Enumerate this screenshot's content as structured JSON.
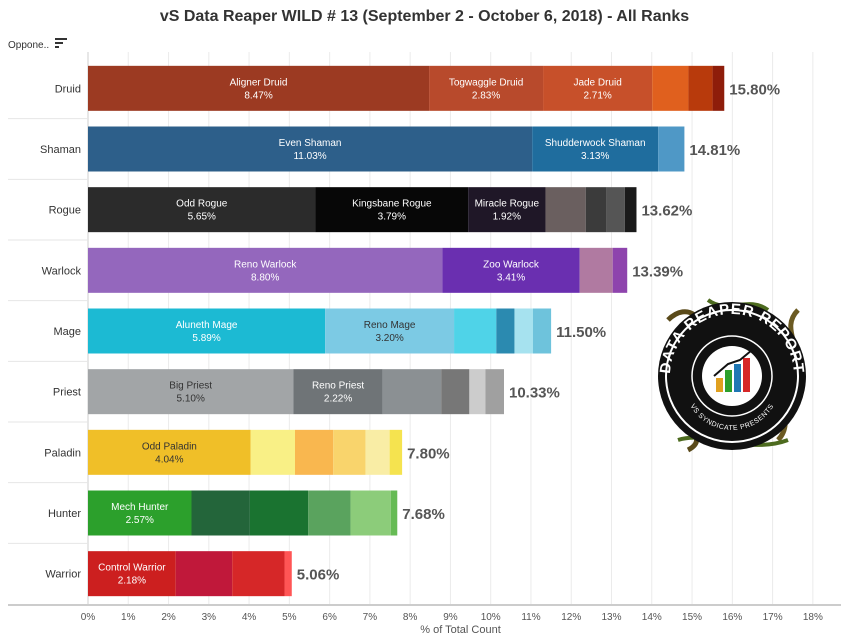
{
  "header": {
    "title": "vS Data Reaper WILD # 13 (September 2 - October 6, 2018) - All Ranks",
    "row_header_label": "Oppone..",
    "sort_icon": "sort-icon"
  },
  "logo": {
    "text_top": "DATA REAPER REPORT",
    "text_bottom": "VS SYNDICATE PRESENTS",
    "icon": "bar-chart-reaper-logo"
  },
  "chart_data": {
    "type": "bar",
    "orientation": "horizontal",
    "stacked": true,
    "xlabel": "% of Total Count",
    "xlim": [
      0,
      18.5
    ],
    "xticks": [
      "0%",
      "1%",
      "2%",
      "3%",
      "4%",
      "5%",
      "6%",
      "7%",
      "8%",
      "9%",
      "10%",
      "11%",
      "12%",
      "13%",
      "14%",
      "15%",
      "16%",
      "17%",
      "18%"
    ],
    "grid": "vertical",
    "categories": [
      {
        "class": "Druid",
        "total": 15.8,
        "total_label": "15.80%",
        "segments": [
          {
            "name": "Aligner Druid",
            "value": 8.47,
            "label": "8.47%",
            "color": "#9c3a22"
          },
          {
            "name": "Togwaggle Druid",
            "value": 2.83,
            "label": "2.83%",
            "color": "#b84a2c"
          },
          {
            "name": "Jade Druid",
            "value": 2.71,
            "label": "2.71%",
            "color": "#c7502a"
          },
          {
            "name": "",
            "value": 0.9,
            "label": "",
            "color": "#e0601e"
          },
          {
            "name": "",
            "value": 0.6,
            "label": "",
            "color": "#b83a0c"
          },
          {
            "name": "",
            "value": 0.29,
            "label": "",
            "color": "#8e1d0a"
          }
        ]
      },
      {
        "class": "Shaman",
        "total": 14.81,
        "total_label": "14.81%",
        "segments": [
          {
            "name": "Even Shaman",
            "value": 11.03,
            "label": "11.03%",
            "color": "#2d5f8a"
          },
          {
            "name": "Shudderwock Shaman",
            "value": 3.13,
            "label": "3.13%",
            "color": "#1f6d9e"
          },
          {
            "name": "",
            "value": 0.65,
            "label": "",
            "color": "#4f98c6"
          }
        ]
      },
      {
        "class": "Rogue",
        "total": 13.62,
        "total_label": "13.62%",
        "segments": [
          {
            "name": "Odd Rogue",
            "value": 5.65,
            "label": "5.65%",
            "color": "#2b2b2b"
          },
          {
            "name": "Kingsbane Rogue",
            "value": 3.79,
            "label": "3.79%",
            "color": "#070707"
          },
          {
            "name": "Miracle Rogue",
            "value": 1.92,
            "label": "1.92%",
            "color": "#1f1727"
          },
          {
            "name": "",
            "value": 1.0,
            "label": "",
            "color": "#6a5f5f"
          },
          {
            "name": "",
            "value": 0.52,
            "label": "",
            "color": "#3b3b3b"
          },
          {
            "name": "",
            "value": 0.45,
            "label": "",
            "color": "#555555"
          },
          {
            "name": "",
            "value": 0.29,
            "label": "",
            "color": "#1a1a1a"
          }
        ]
      },
      {
        "class": "Warlock",
        "total": 13.39,
        "total_label": "13.39%",
        "segments": [
          {
            "name": "Reno Warlock",
            "value": 8.8,
            "label": "8.80%",
            "color": "#9467bd"
          },
          {
            "name": "Zoo Warlock",
            "value": 3.41,
            "label": "3.41%",
            "color": "#6a2fb0"
          },
          {
            "name": "",
            "value": 0.82,
            "label": "",
            "color": "#b07aa1"
          },
          {
            "name": "",
            "value": 0.36,
            "label": "",
            "color": "#8e44ad"
          }
        ]
      },
      {
        "class": "Mage",
        "total": 11.5,
        "total_label": "11.50%",
        "segments": [
          {
            "name": "Aluneth Mage",
            "value": 5.89,
            "label": "5.89%",
            "color": "#1cbad3"
          },
          {
            "name": "Reno Mage",
            "value": 3.2,
            "label": "3.20%",
            "color": "#7ccae4"
          },
          {
            "name": "",
            "value": 1.05,
            "label": "",
            "color": "#4fd3e8"
          },
          {
            "name": "",
            "value": 0.45,
            "label": "",
            "color": "#2b8ab0"
          },
          {
            "name": "",
            "value": 0.46,
            "label": "",
            "color": "#a6e2ef"
          },
          {
            "name": "",
            "value": 0.45,
            "label": "",
            "color": "#6ec3dc"
          }
        ]
      },
      {
        "class": "Priest",
        "total": 10.33,
        "total_label": "10.33%",
        "segments": [
          {
            "name": "Big Priest",
            "value": 5.1,
            "label": "5.10%",
            "color": "#a2a5a7"
          },
          {
            "name": "Reno Priest",
            "value": 2.22,
            "label": "2.22%",
            "color": "#6f7477"
          },
          {
            "name": "",
            "value": 1.45,
            "label": "",
            "color": "#8b9093"
          },
          {
            "name": "",
            "value": 0.7,
            "label": "",
            "color": "#777777"
          },
          {
            "name": "",
            "value": 0.4,
            "label": "",
            "color": "#cccccc"
          },
          {
            "name": "",
            "value": 0.46,
            "label": "",
            "color": "#a0a0a0"
          }
        ]
      },
      {
        "class": "Paladin",
        "total": 7.8,
        "total_label": "7.80%",
        "segments": [
          {
            "name": "Odd Paladin",
            "value": 4.04,
            "label": "4.04%",
            "color": "#f0bf28"
          },
          {
            "name": "",
            "value": 1.1,
            "label": "",
            "color": "#f9f086"
          },
          {
            "name": "",
            "value": 0.95,
            "label": "",
            "color": "#f9b74f"
          },
          {
            "name": "",
            "value": 0.8,
            "label": "",
            "color": "#f9d46c"
          },
          {
            "name": "",
            "value": 0.6,
            "label": "",
            "color": "#f9eda5"
          },
          {
            "name": "",
            "value": 0.31,
            "label": "",
            "color": "#f5e34f"
          }
        ]
      },
      {
        "class": "Hunter",
        "total": 7.68,
        "total_label": "7.68%",
        "segments": [
          {
            "name": "Mech Hunter",
            "value": 2.57,
            "label": "2.57%",
            "color": "#2ca02c"
          },
          {
            "name": "",
            "value": 1.45,
            "label": "",
            "color": "#23653a"
          },
          {
            "name": "",
            "value": 1.45,
            "label": "",
            "color": "#1a7330"
          },
          {
            "name": "",
            "value": 1.05,
            "label": "",
            "color": "#5aa35e"
          },
          {
            "name": "",
            "value": 1.0,
            "label": "",
            "color": "#8ccc7a"
          },
          {
            "name": "",
            "value": 0.16,
            "label": "",
            "color": "#66bb55"
          }
        ]
      },
      {
        "class": "Warrior",
        "total": 5.06,
        "total_label": "5.06%",
        "segments": [
          {
            "name": "Control Warrior",
            "value": 2.18,
            "label": "2.18%",
            "color": "#cc1f1f"
          },
          {
            "name": "",
            "value": 1.4,
            "label": "",
            "color": "#c0183a"
          },
          {
            "name": "",
            "value": 1.3,
            "label": "",
            "color": "#d62728"
          },
          {
            "name": "",
            "value": 0.18,
            "label": "",
            "color": "#ff5555"
          }
        ]
      }
    ]
  }
}
